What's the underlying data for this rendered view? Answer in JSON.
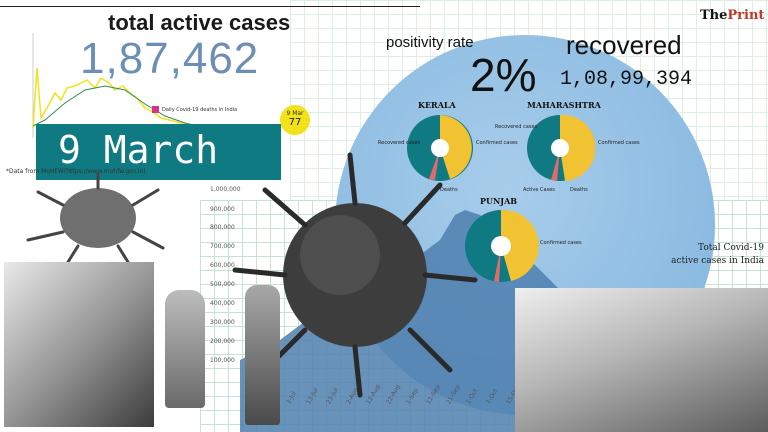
{
  "header": {
    "title": "total active cases",
    "active_cases": "1,87,462",
    "date": "9 March",
    "source_note": "*Data from MoHFW(https://www.mohfw.gov.in)"
  },
  "brand": {
    "the": "The",
    "print": "Print"
  },
  "mini_chart": {
    "legend": "Daily Covid-19 deaths in India",
    "marker_date": "9 Mar",
    "marker_value": "77",
    "color": "#f1e21a"
  },
  "stats": {
    "positivity_label": "positivity  rate",
    "positivity_value": "2%",
    "recovered_label": "recovered",
    "recovered_value": "1,08,99,394"
  },
  "states": [
    {
      "name": "KERALA",
      "labels": [
        "Recovered cases",
        "Confirmed cases",
        "Deaths"
      ]
    },
    {
      "name": "MAHARASHTRA",
      "labels": [
        "Recovered cases",
        "Active Cases",
        "Confirmed cases",
        "Deaths"
      ]
    },
    {
      "name": "PUNJAB",
      "labels": [
        "Confirmed cases"
      ]
    }
  ],
  "trend": {
    "title": "Total Covid-19 active cases in India",
    "yticks": [
      "1,000,000",
      "900,000",
      "800,000",
      "700,000",
      "600,000",
      "500,000",
      "400,000",
      "300,000",
      "200,000",
      "100,000"
    ],
    "xticks": [
      "3-Jul",
      "13-Jul",
      "23-Jul",
      "2-Aug",
      "12-Aug",
      "22-Aug",
      "1-Sep",
      "11-Sep",
      "21-Sep",
      "1-Oct",
      "7-Oct",
      "15-Oct"
    ]
  },
  "colors": {
    "teal": "#0f7a82",
    "yellow": "#f1c232",
    "circle": "#8dbfe3",
    "grid": "#b9dcc6"
  }
}
